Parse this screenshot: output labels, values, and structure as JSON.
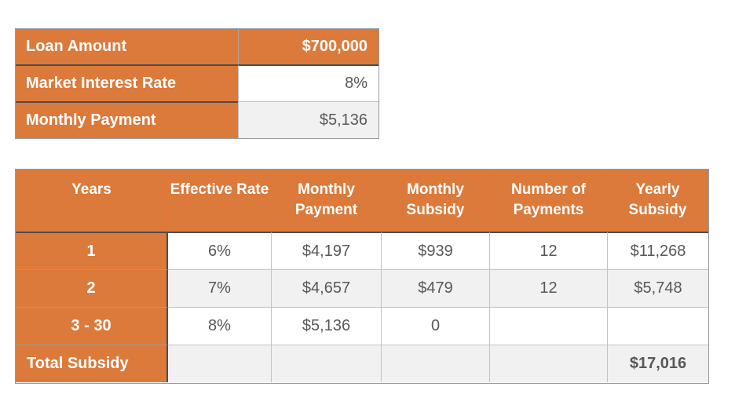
{
  "summary_table": {
    "rows": [
      {
        "label": "Loan Amount",
        "value": "$700,000"
      },
      {
        "label": "Market Interest Rate",
        "value": "8%"
      },
      {
        "label": "Monthly Payment",
        "value": "$5,136"
      }
    ]
  },
  "subsidy_table": {
    "headers": [
      "Years",
      "Effective Rate",
      "Monthly Payment",
      "Monthly Subsidy",
      "Number of Payments",
      "Yearly Subsidy"
    ],
    "rows": [
      [
        "1",
        "6%",
        "$4,197",
        "$939",
        "12",
        "$11,268"
      ],
      [
        "2",
        "7%",
        "$4,657",
        "$479",
        "12",
        "$5,748"
      ],
      [
        "3 - 30",
        "8%",
        "$5,136",
        "0",
        "",
        ""
      ],
      [
        "Total Subsidy",
        "",
        "",
        "",
        "",
        "$17,016"
      ]
    ]
  },
  "colors": {
    "accent_orange": "#DC7A3B",
    "alt_row_gray": "#F1F1F2",
    "body_text": "#58585A",
    "grid_dark": "#4D4D4D",
    "grid_light": "#C3C3C3",
    "header_text": "#FFFFFF"
  }
}
